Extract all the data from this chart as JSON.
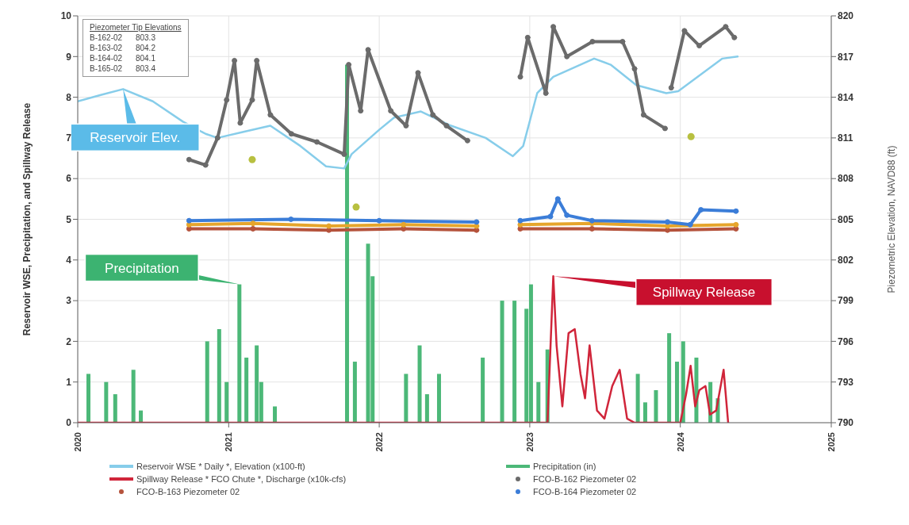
{
  "chart_data": {
    "type": "line",
    "ylabel": "Reservoir WSE, Precipitation, and Spillway Release",
    "y2label": "Piezometric Elevation, NAVD88 (ft)",
    "xlim": [
      "2020",
      "2025"
    ],
    "xticks": [
      "2020",
      "2021",
      "2022",
      "2023",
      "2024",
      "2025"
    ],
    "ylim": [
      0,
      10
    ],
    "yticks": [
      0,
      1,
      2,
      3,
      4,
      5,
      6,
      7,
      8,
      9,
      10
    ],
    "y2lim": [
      790,
      820
    ],
    "y2ticks": [
      790,
      793,
      796,
      799,
      802,
      805,
      808,
      811,
      814,
      817,
      820
    ],
    "grid": true,
    "legend": "bottom",
    "annotations": [
      "Piezometer Tip Elevations",
      "B-162-02 803.3",
      "B-163-02 804.2",
      "B-164-02 804.1",
      "B-165-02 803.4",
      {
        "text": "Reservoir Elev.",
        "x": "2020-04-20",
        "y": 8.2
      },
      {
        "text": "Precipitation",
        "x": "2021-01-27",
        "y": 3.4
      },
      {
        "text": "Spillway Release",
        "x": "2023-02-27",
        "y": 3.6
      }
    ],
    "series": [
      {
        "name": "Reservoir WSE * Daily *, Elevation (x100-ft)",
        "color": "#87cdea",
        "x": [
          "2020-01-01",
          "2020-02-24",
          "2020-04-20",
          "2020-07-01",
          "2020-09-12",
          "2020-11-06",
          "2020-12-05",
          "2021-02-06",
          "2021-04-12",
          "2021-06-24",
          "2021-08-25",
          "2021-10-08",
          "2021-10-26",
          "2022-01-01",
          "2022-02-06",
          "2022-04-12",
          "2022-06-24",
          "2022-09-16",
          "2022-11-21",
          "2022-12-16",
          "2023-01-19",
          "2023-02-27",
          "2023-06-06",
          "2023-07-16",
          "2023-09-16",
          "2023-11-28",
          "2023-12-27",
          "2024-04-12",
          "2024-05-19"
        ],
        "values": [
          7.9,
          8.05,
          8.2,
          7.9,
          7.4,
          7.1,
          7.0,
          7.15,
          7.3,
          6.8,
          6.3,
          6.25,
          6.6,
          7.2,
          7.5,
          7.65,
          7.3,
          7.0,
          6.55,
          6.8,
          8.1,
          8.5,
          8.95,
          8.8,
          8.3,
          8.1,
          8.15,
          8.95,
          9.0
        ]
      },
      {
        "name": "Precipitation (in)",
        "type": "bar",
        "color": "#4cb878",
        "x": [
          "2020-01-27",
          "2020-03-10",
          "2020-04-01",
          "2020-05-15",
          "2020-06-02",
          "2020-11-10",
          "2020-12-09",
          "2020-12-27",
          "2021-01-27",
          "2021-02-13",
          "2021-03-10",
          "2021-03-21",
          "2021-04-23",
          "2021-10-15",
          "2021-11-03",
          "2021-12-05",
          "2021-12-16",
          "2022-03-07",
          "2022-04-09",
          "2022-04-27",
          "2022-05-26",
          "2022-09-09",
          "2022-10-26",
          "2022-11-25",
          "2022-12-24",
          "2023-01-04",
          "2023-01-22",
          "2023-02-13",
          "2023-09-20",
          "2023-10-08",
          "2023-11-03",
          "2023-12-05",
          "2023-12-24",
          "2024-01-08",
          "2024-02-09",
          "2024-03-14",
          "2024-04-01"
        ],
        "values": [
          1.2,
          1.0,
          0.7,
          1.3,
          0.3,
          2.0,
          2.3,
          1.0,
          3.4,
          1.6,
          1.9,
          1.0,
          0.4,
          8.8,
          1.5,
          4.4,
          3.6,
          1.2,
          1.9,
          0.7,
          1.2,
          1.6,
          3.0,
          3.0,
          2.8,
          3.4,
          1.0,
          1.8,
          1.2,
          0.5,
          0.8,
          2.2,
          1.5,
          2.0,
          1.6,
          1.0,
          0.6
        ]
      },
      {
        "name": "Spillway Release * FCO Chute *, Discharge (x10k-cfs)",
        "color": "#d0253a",
        "x": [
          "2020-01-01",
          "2023-02-13",
          "2023-02-27",
          "2023-03-07",
          "2023-03-21",
          "2023-04-05",
          "2023-04-20",
          "2023-05-04",
          "2023-05-15",
          "2023-05-26",
          "2023-06-13",
          "2023-07-01",
          "2023-07-20",
          "2023-08-07",
          "2023-08-25",
          "2023-09-12",
          "2024-01-01",
          "2024-01-15",
          "2024-01-26",
          "2024-02-06",
          "2024-02-16",
          "2024-03-02",
          "2024-03-13",
          "2024-03-28",
          "2024-04-15",
          "2024-04-26"
        ],
        "values": [
          0,
          0,
          3.6,
          1.9,
          0.4,
          2.2,
          2.3,
          1.2,
          0.6,
          1.9,
          0.3,
          0.1,
          0.9,
          1.3,
          0.1,
          0,
          0,
          0.7,
          1.4,
          0.4,
          0.8,
          0.9,
          0.2,
          0.3,
          1.3,
          0
        ]
      },
      {
        "name": "FCO-B-162 Piezometer 02",
        "marker": "circle",
        "axis": "y2",
        "color": "#6b6b6b",
        "x": [
          "2020-09-27",
          "2020-11-06",
          "2020-12-05",
          "2020-12-27",
          "2021-01-15",
          "2021-01-29",
          "2021-02-27",
          "2021-03-10",
          "2021-04-12",
          "2021-06-02",
          "2021-08-03",
          "2021-10-08",
          "2021-10-19",
          "2021-11-17",
          "2021-12-05",
          "2022-01-29",
          "2022-03-07",
          "2022-04-05",
          "2022-05-11",
          "2022-06-13",
          "2022-08-03",
          "2022-09-30",
          "2022-12-09",
          "2022-12-27",
          "2023-02-09",
          "2023-02-27",
          "2023-04-01",
          "2023-06-02",
          "2023-08-14",
          "2023-09-12",
          "2023-10-04",
          "2023-11-25",
          "2023-12-01",
          "2023-12-10",
          "2024-01-11",
          "2024-02-16",
          "2024-04-20",
          "2024-05-11"
        ],
        "values": [
          809.4,
          809.0,
          811.0,
          813.8,
          816.7,
          812.1,
          813.8,
          816.7,
          812.7,
          811.3,
          810.7,
          809.8,
          816.4,
          813.0,
          817.5,
          813.0,
          811.9,
          815.8,
          812.7,
          811.9,
          810.8,
          null,
          815.5,
          818.4,
          814.3,
          819.2,
          817.0,
          818.1,
          818.1,
          816.1,
          812.7,
          811.7,
          null,
          814.7,
          818.9,
          817.8,
          819.2,
          818.4
        ]
      },
      {
        "name": "FCO-B-163 Piezometer 02",
        "marker": "circle",
        "axis": "y2",
        "color": "#b5533c",
        "x": [
          "2020-09-27",
          "2021-03-01",
          "2021-09-01",
          "2022-03-01",
          "2022-08-25",
          "2022-10-15",
          "2022-12-09",
          "2023-06-01",
          "2023-12-01",
          "2024-05-15"
        ],
        "values": [
          804.3,
          804.3,
          804.2,
          804.3,
          804.2,
          null,
          804.3,
          804.3,
          804.2,
          804.3
        ]
      },
      {
        "marker": "circle",
        "axis": "y2",
        "color": "#e6a52c",
        "x": [
          "2020-09-27",
          "2021-03-01",
          "2021-09-01",
          "2022-03-01",
          "2022-08-25",
          "2022-10-15",
          "2022-12-09",
          "2023-06-01",
          "2023-12-01",
          "2024-05-15"
        ],
        "values": [
          804.6,
          804.7,
          804.5,
          804.6,
          804.5,
          null,
          804.6,
          804.7,
          804.5,
          804.6
        ]
      },
      {
        "name": "FCO-B-164 Piezometer 02",
        "marker": "circle",
        "axis": "y2",
        "color": "#3b7dd8",
        "x": [
          "2020-09-27",
          "2021-06-01",
          "2022-01-01",
          "2022-08-25",
          "2022-10-15",
          "2022-12-09",
          "2023-02-20",
          "2023-03-10",
          "2023-04-01",
          "2023-06-01",
          "2023-12-01",
          "2024-01-25",
          "2024-02-20",
          "2024-05-15"
        ],
        "values": [
          804.9,
          805.0,
          804.9,
          804.8,
          null,
          804.9,
          805.2,
          806.5,
          805.3,
          804.9,
          804.8,
          804.6,
          805.7,
          805.6
        ]
      },
      {
        "type": "scatter",
        "marker": "circle",
        "axis": "y2",
        "color": "#b8c040",
        "x": [
          "2021-02-27",
          "2021-11-06",
          "2024-01-27"
        ],
        "values": [
          809.4,
          805.9,
          811.1
        ]
      }
    ]
  }
}
